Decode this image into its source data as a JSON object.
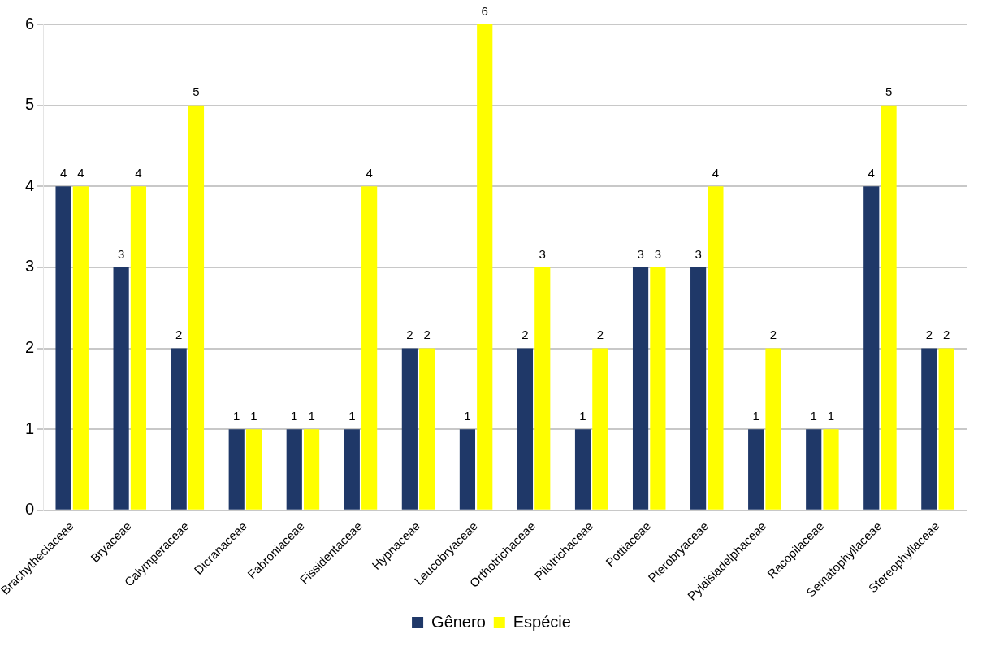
{
  "chart_data": {
    "type": "bar",
    "categories": [
      "Brachytheciaceae",
      "Bryaceae",
      "Calymperaceae",
      "Dicranaceae",
      "Fabroniaceae",
      "Fissidentaceae",
      "Hypnaceae",
      "Leucobryaceae",
      "Orthotrichaceae",
      "Pilotrichaceae",
      "Pottiaceae",
      "Pterobryaceae",
      "Pylaisiadelphaceae",
      "Racopilaceae",
      "Sematophyllaceae",
      "Stereophyllaceae"
    ],
    "series": [
      {
        "name": "Gênero",
        "color": "#1f3868",
        "values": [
          4,
          3,
          2,
          1,
          1,
          1,
          2,
          1,
          2,
          1,
          3,
          3,
          1,
          1,
          4,
          2
        ]
      },
      {
        "name": "Espécie",
        "color": "#ffff00",
        "values": [
          4,
          4,
          5,
          1,
          1,
          4,
          2,
          6,
          3,
          2,
          3,
          4,
          2,
          1,
          5,
          2
        ]
      }
    ],
    "ylim": [
      0,
      6
    ],
    "yticks": [
      0,
      1,
      2,
      3,
      4,
      5,
      6
    ],
    "grid": "y",
    "legend": "bottom",
    "data_labels": true
  }
}
